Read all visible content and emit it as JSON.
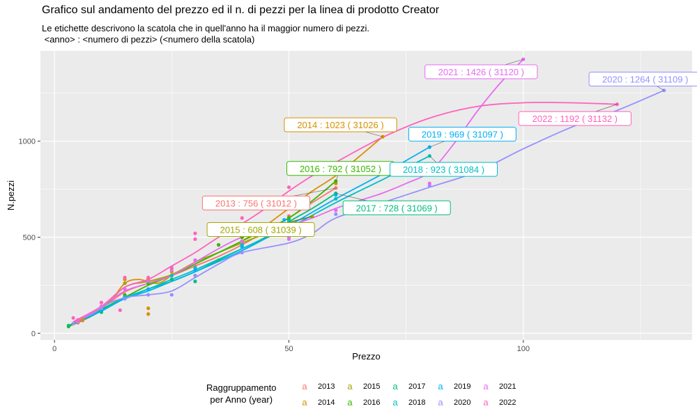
{
  "title": "Grafico sul andamento del prezzo ed il n. di pezzi per la linea di prodotto Creator",
  "subtitle": "Le etichette descrivono la scatola che in quell'anno ha il maggior numero di pezzi.\n <anno> : <numero di pezzi> (<numero della scatola)",
  "legend": {
    "title": "Raggruppamento\nper Anno (year)",
    "key_glyph": "a",
    "items": [
      {
        "label": "2013",
        "color": "#F8766D"
      },
      {
        "label": "2014",
        "color": "#D89000"
      },
      {
        "label": "2015",
        "color": "#A3A500"
      },
      {
        "label": "2016",
        "color": "#39B600"
      },
      {
        "label": "2017",
        "color": "#00BF7D"
      },
      {
        "label": "2018",
        "color": "#00BFC4"
      },
      {
        "label": "2019",
        "color": "#00B0F6"
      },
      {
        "label": "2020",
        "color": "#9590FF"
      },
      {
        "label": "2021",
        "color": "#E76BF3"
      },
      {
        "label": "2022",
        "color": "#FF62BC"
      }
    ]
  },
  "chart_data": {
    "type": "scatter",
    "xlabel": "Prezzo",
    "ylabel": "N.pezzi",
    "xlim": [
      -3,
      136
    ],
    "ylim": [
      -35,
      1470
    ],
    "xticks": [
      0,
      50,
      100
    ],
    "yticks": [
      0,
      500,
      1000
    ],
    "grid": true,
    "background": "#EBEBEB",
    "legend_position": "bottom",
    "series": [
      {
        "name": "2013",
        "color": "#F8766D",
        "points": [
          [
            5,
            60
          ],
          [
            6,
            66
          ],
          [
            10,
            130
          ],
          [
            15,
            230
          ],
          [
            20,
            270
          ],
          [
            25,
            300
          ],
          [
            30,
            350
          ],
          [
            40,
            470
          ],
          [
            50,
            610
          ],
          [
            60,
            756
          ]
        ],
        "smooth": [
          [
            4,
            55
          ],
          [
            10,
            130
          ],
          [
            15,
            215
          ],
          [
            20,
            260
          ],
          [
            25,
            300
          ],
          [
            30,
            350
          ],
          [
            35,
            400
          ],
          [
            40,
            460
          ],
          [
            45,
            530
          ],
          [
            50,
            600
          ],
          [
            55,
            680
          ],
          [
            60,
            756
          ]
        ],
        "label": {
          "text": "2013 : 756 ( 31012 )",
          "x": 43,
          "y": 678,
          "px": 60,
          "py": 756
        }
      },
      {
        "name": "2014",
        "color": "#D89000",
        "points": [
          [
            4,
            50
          ],
          [
            5,
            60
          ],
          [
            6,
            70
          ],
          [
            10,
            130
          ],
          [
            15,
            280
          ],
          [
            20,
            280
          ],
          [
            20,
            130
          ],
          [
            20,
            100
          ],
          [
            25,
            320
          ],
          [
            30,
            380
          ],
          [
            40,
            500
          ],
          [
            50,
            650
          ],
          [
            60,
            780
          ],
          [
            70,
            1023
          ]
        ],
        "smooth": [
          [
            4,
            55
          ],
          [
            8,
            100
          ],
          [
            12,
            170
          ],
          [
            15,
            260
          ],
          [
            18,
            280
          ],
          [
            22,
            260
          ],
          [
            25,
            300
          ],
          [
            30,
            370
          ],
          [
            35,
            420
          ],
          [
            40,
            480
          ],
          [
            45,
            560
          ],
          [
            50,
            650
          ],
          [
            55,
            740
          ],
          [
            60,
            820
          ],
          [
            65,
            920
          ],
          [
            70,
            1023
          ]
        ],
        "label": {
          "text": "2014 : 1023 ( 31026 )",
          "x": 61,
          "y": 1085,
          "px": 70,
          "py": 1023
        }
      },
      {
        "name": "2015",
        "color": "#A3A500",
        "points": [
          [
            5,
            55
          ],
          [
            10,
            120
          ],
          [
            15,
            260
          ],
          [
            20,
            270
          ],
          [
            25,
            300
          ],
          [
            30,
            380
          ],
          [
            40,
            480
          ],
          [
            50,
            580
          ],
          [
            55,
            608
          ]
        ],
        "smooth": [
          [
            5,
            55
          ],
          [
            10,
            125
          ],
          [
            15,
            240
          ],
          [
            20,
            270
          ],
          [
            25,
            305
          ],
          [
            30,
            370
          ],
          [
            35,
            420
          ],
          [
            40,
            470
          ],
          [
            45,
            520
          ],
          [
            50,
            575
          ],
          [
            55,
            608
          ]
        ],
        "label": {
          "text": "2015 : 608 ( 31039 )",
          "x": 44,
          "y": 540,
          "px": 55,
          "py": 608
        }
      },
      {
        "name": "2016",
        "color": "#39B600",
        "points": [
          [
            3,
            35
          ],
          [
            5,
            60
          ],
          [
            10,
            110
          ],
          [
            15,
            200
          ],
          [
            20,
            260
          ],
          [
            25,
            340
          ],
          [
            30,
            380
          ],
          [
            35,
            460
          ],
          [
            40,
            500
          ],
          [
            50,
            600
          ],
          [
            60,
            792
          ]
        ],
        "smooth": [
          [
            3,
            35
          ],
          [
            8,
            90
          ],
          [
            12,
            150
          ],
          [
            16,
            200
          ],
          [
            20,
            250
          ],
          [
            25,
            300
          ],
          [
            30,
            360
          ],
          [
            35,
            420
          ],
          [
            40,
            480
          ],
          [
            45,
            540
          ],
          [
            50,
            600
          ],
          [
            55,
            690
          ],
          [
            60,
            792
          ]
        ],
        "label": {
          "text": "2016 : 792 ( 31052 )",
          "x": 61,
          "y": 858,
          "px": 60,
          "py": 792
        }
      },
      {
        "name": "2017",
        "color": "#00BF7D",
        "points": [
          [
            3,
            40
          ],
          [
            5,
            60
          ],
          [
            10,
            110
          ],
          [
            15,
            190
          ],
          [
            20,
            230
          ],
          [
            25,
            280
          ],
          [
            30,
            300
          ],
          [
            30,
            270
          ],
          [
            35,
            380
          ],
          [
            40,
            460
          ],
          [
            50,
            590
          ],
          [
            60,
            728
          ]
        ],
        "smooth": [
          [
            3,
            40
          ],
          [
            8,
            95
          ],
          [
            12,
            150
          ],
          [
            16,
            190
          ],
          [
            20,
            230
          ],
          [
            25,
            270
          ],
          [
            30,
            320
          ],
          [
            35,
            380
          ],
          [
            40,
            440
          ],
          [
            45,
            500
          ],
          [
            50,
            580
          ],
          [
            55,
            650
          ],
          [
            60,
            728
          ]
        ],
        "label": {
          "text": "2017 : 728 ( 31069 )",
          "x": 73,
          "y": 653,
          "px": 60,
          "py": 728
        }
      },
      {
        "name": "2018",
        "color": "#00BFC4",
        "points": [
          [
            5,
            60
          ],
          [
            10,
            120
          ],
          [
            15,
            190
          ],
          [
            20,
            230
          ],
          [
            25,
            300
          ],
          [
            30,
            340
          ],
          [
            40,
            460
          ],
          [
            50,
            580
          ],
          [
            60,
            700
          ],
          [
            80,
            923
          ]
        ],
        "smooth": [
          [
            5,
            60
          ],
          [
            10,
            115
          ],
          [
            15,
            185
          ],
          [
            20,
            230
          ],
          [
            25,
            280
          ],
          [
            30,
            330
          ],
          [
            40,
            440
          ],
          [
            50,
            550
          ],
          [
            60,
            680
          ],
          [
            70,
            800
          ],
          [
            80,
            923
          ]
        ],
        "label": {
          "text": "2018 : 923 ( 31084 )",
          "x": 83,
          "y": 853,
          "px": 80,
          "py": 923
        }
      },
      {
        "name": "2019",
        "color": "#00B0F6",
        "points": [
          [
            5,
            60
          ],
          [
            10,
            120
          ],
          [
            15,
            180
          ],
          [
            20,
            230
          ],
          [
            25,
            340
          ],
          [
            30,
            330
          ],
          [
            40,
            450
          ],
          [
            49,
            590
          ],
          [
            60,
            720
          ],
          [
            80,
            969
          ]
        ],
        "smooth": [
          [
            5,
            60
          ],
          [
            10,
            115
          ],
          [
            15,
            180
          ],
          [
            20,
            220
          ],
          [
            25,
            270
          ],
          [
            30,
            320
          ],
          [
            40,
            430
          ],
          [
            50,
            560
          ],
          [
            60,
            700
          ],
          [
            70,
            830
          ],
          [
            80,
            969
          ]
        ],
        "label": {
          "text": "2019 : 969 ( 31097 )",
          "x": 87,
          "y": 1036,
          "px": 80,
          "py": 969
        }
      },
      {
        "name": "2020",
        "color": "#9590FF",
        "points": [
          [
            4,
            50
          ],
          [
            5,
            60
          ],
          [
            10,
            130
          ],
          [
            15,
            180
          ],
          [
            20,
            200
          ],
          [
            25,
            200
          ],
          [
            30,
            300
          ],
          [
            40,
            420
          ],
          [
            50,
            500
          ],
          [
            60,
            620
          ],
          [
            80,
            768
          ],
          [
            130,
            1264
          ]
        ],
        "smooth": [
          [
            4,
            55
          ],
          [
            8,
            100
          ],
          [
            12,
            160
          ],
          [
            16,
            190
          ],
          [
            20,
            200
          ],
          [
            25,
            220
          ],
          [
            30,
            290
          ],
          [
            35,
            360
          ],
          [
            40,
            420
          ],
          [
            50,
            470
          ],
          [
            55,
            520
          ],
          [
            60,
            600
          ],
          [
            70,
            680
          ],
          [
            80,
            760
          ],
          [
            90,
            840
          ],
          [
            100,
            960
          ],
          [
            110,
            1070
          ],
          [
            120,
            1160
          ],
          [
            130,
            1264
          ]
        ],
        "label": {
          "text": "2020 : 1264 ( 31109 )",
          "x": 126,
          "y": 1323,
          "px": 130,
          "py": 1264
        }
      },
      {
        "name": "2021",
        "color": "#E76BF3",
        "points": [
          [
            5,
            60
          ],
          [
            10,
            140
          ],
          [
            15,
            230
          ],
          [
            20,
            270
          ],
          [
            25,
            330
          ],
          [
            30,
            380
          ],
          [
            40,
            480
          ],
          [
            50,
            490
          ],
          [
            60,
            640
          ],
          [
            80,
            780
          ],
          [
            100,
            1426
          ]
        ],
        "smooth": [
          [
            5,
            60
          ],
          [
            10,
            140
          ],
          [
            15,
            220
          ],
          [
            20,
            260
          ],
          [
            25,
            300
          ],
          [
            30,
            370
          ],
          [
            35,
            440
          ],
          [
            40,
            500
          ],
          [
            45,
            530
          ],
          [
            50,
            560
          ],
          [
            55,
            600
          ],
          [
            60,
            650
          ],
          [
            65,
            690
          ],
          [
            70,
            730
          ],
          [
            75,
            780
          ],
          [
            80,
            840
          ],
          [
            85,
            980
          ],
          [
            90,
            1150
          ],
          [
            95,
            1300
          ],
          [
            100,
            1426
          ]
        ],
        "label": {
          "text": "2021 : 1426 ( 31120 )",
          "x": 91,
          "y": 1361,
          "px": 100,
          "py": 1426
        }
      },
      {
        "name": "2022",
        "color": "#FF62BC",
        "points": [
          [
            4,
            80
          ],
          [
            5,
            70
          ],
          [
            10,
            160
          ],
          [
            14,
            120
          ],
          [
            15,
            290
          ],
          [
            20,
            290
          ],
          [
            25,
            340
          ],
          [
            30,
            520
          ],
          [
            30,
            490
          ],
          [
            35,
            520
          ],
          [
            40,
            600
          ],
          [
            50,
            760
          ],
          [
            53,
            850
          ],
          [
            60,
            830
          ],
          [
            120,
            1192
          ]
        ],
        "smooth": [
          [
            4,
            60
          ],
          [
            10,
            140
          ],
          [
            15,
            240
          ],
          [
            20,
            280
          ],
          [
            25,
            350
          ],
          [
            30,
            420
          ],
          [
            35,
            500
          ],
          [
            40,
            570
          ],
          [
            45,
            650
          ],
          [
            50,
            740
          ],
          [
            55,
            820
          ],
          [
            60,
            890
          ],
          [
            70,
            1020
          ],
          [
            80,
            1120
          ],
          [
            90,
            1180
          ],
          [
            100,
            1200
          ],
          [
            110,
            1200
          ],
          [
            120,
            1192
          ]
        ],
        "label": {
          "text": "2022 : 1192 ( 31132 )",
          "x": 111,
          "y": 1118,
          "px": 120,
          "py": 1192
        }
      }
    ]
  }
}
